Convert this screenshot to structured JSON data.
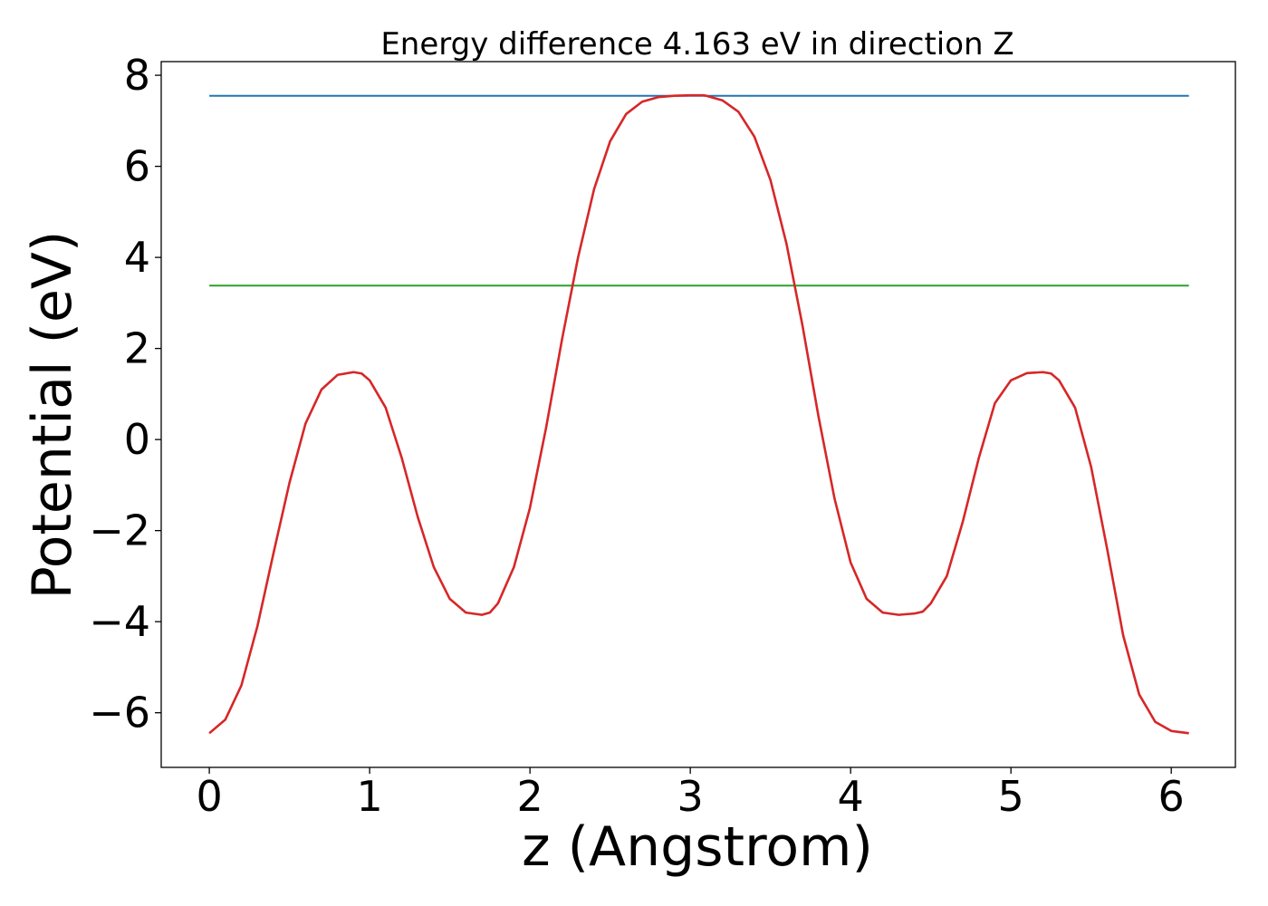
{
  "chart_data": {
    "type": "line",
    "title": "Energy difference 4.163 eV in direction Z",
    "xlabel": "z (Angstrom)",
    "ylabel": "Potential (eV)",
    "xlim": [
      -0.3,
      6.4
    ],
    "ylim": [
      -7.2,
      8.3
    ],
    "xticks": [
      0,
      1,
      2,
      3,
      4,
      5,
      6
    ],
    "yticks": [
      -6,
      -4,
      -2,
      0,
      2,
      4,
      6,
      8
    ],
    "xtick_labels": [
      "0",
      "1",
      "2",
      "3",
      "4",
      "5",
      "6"
    ],
    "ytick_labels": [
      "−6",
      "−4",
      "−2",
      "0",
      "2",
      "4",
      "6",
      "8"
    ],
    "grid": false,
    "series": [
      {
        "color": "#1f77b4",
        "x": [
          0,
          6.11
        ],
        "y": [
          7.55,
          7.55
        ]
      },
      {
        "color": "#2ca02c",
        "x": [
          0,
          6.11
        ],
        "y": [
          3.38,
          3.38
        ]
      },
      {
        "color": "#d62728",
        "x": [
          0,
          0.1,
          0.2,
          0.3,
          0.4,
          0.5,
          0.6,
          0.7,
          0.8,
          0.9,
          0.95,
          1.0,
          1.1,
          1.2,
          1.3,
          1.4,
          1.5,
          1.6,
          1.7,
          1.75,
          1.8,
          1.9,
          2.0,
          2.1,
          2.2,
          2.3,
          2.4,
          2.5,
          2.6,
          2.7,
          2.8,
          2.9,
          3.0,
          3.08,
          3.1,
          3.2,
          3.3,
          3.4,
          3.5,
          3.6,
          3.7,
          3.8,
          3.9,
          4.0,
          4.1,
          4.2,
          4.3,
          4.4,
          4.45,
          4.5,
          4.6,
          4.7,
          4.8,
          4.9,
          5.0,
          5.1,
          5.2,
          5.25,
          5.3,
          5.4,
          5.5,
          5.6,
          5.7,
          5.8,
          5.9,
          6.0,
          6.11
        ],
        "y": [
          -6.45,
          -6.15,
          -5.4,
          -4.1,
          -2.5,
          -0.95,
          0.35,
          1.1,
          1.42,
          1.48,
          1.45,
          1.3,
          0.7,
          -0.4,
          -1.7,
          -2.8,
          -3.5,
          -3.8,
          -3.85,
          -3.8,
          -3.6,
          -2.8,
          -1.5,
          0.25,
          2.2,
          4.0,
          5.5,
          6.55,
          7.15,
          7.42,
          7.52,
          7.55,
          7.56,
          7.56,
          7.55,
          7.45,
          7.2,
          6.65,
          5.7,
          4.3,
          2.5,
          0.5,
          -1.3,
          -2.7,
          -3.5,
          -3.8,
          -3.85,
          -3.82,
          -3.78,
          -3.6,
          -3.0,
          -1.8,
          -0.4,
          0.8,
          1.3,
          1.46,
          1.48,
          1.45,
          1.3,
          0.7,
          -0.6,
          -2.4,
          -4.3,
          -5.6,
          -6.2,
          -6.4,
          -6.45
        ]
      }
    ]
  }
}
